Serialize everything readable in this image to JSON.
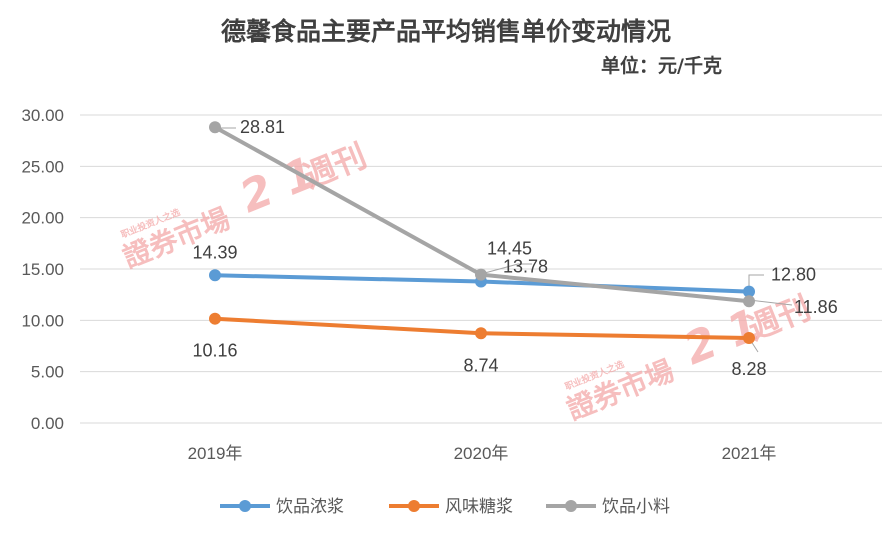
{
  "chart_data": {
    "type": "line",
    "title": "德馨食品主要产品平均销售单价变动情况",
    "subtitle": "单位：元/千克",
    "categories": [
      "2019年",
      "2020年",
      "2021年"
    ],
    "ylim": [
      0,
      30
    ],
    "yticks": [
      "0.00",
      "5.00",
      "10.00",
      "15.00",
      "20.00",
      "25.00",
      "30.00"
    ],
    "grid": true,
    "legend_position": "bottom",
    "series": [
      {
        "name": "饮品浓浆",
        "color": "#5b9bd5",
        "values": [
          14.39,
          13.78,
          12.8
        ],
        "labels": [
          "14.39",
          "13.78",
          "12.80"
        ]
      },
      {
        "name": "风味糖浆",
        "color": "#ed7d31",
        "values": [
          10.16,
          8.74,
          8.28
        ],
        "labels": [
          "10.16",
          "8.74",
          "8.28"
        ]
      },
      {
        "name": "饮品小料",
        "color": "#a5a5a5",
        "values": [
          28.81,
          14.45,
          11.86
        ],
        "labels": [
          "28.81",
          "14.45",
          "11.86"
        ]
      }
    ]
  },
  "watermark": {
    "text": "證券市場",
    "sub": "职业投资人之选",
    "brand": "週刊",
    "color": "#e83a3a"
  }
}
